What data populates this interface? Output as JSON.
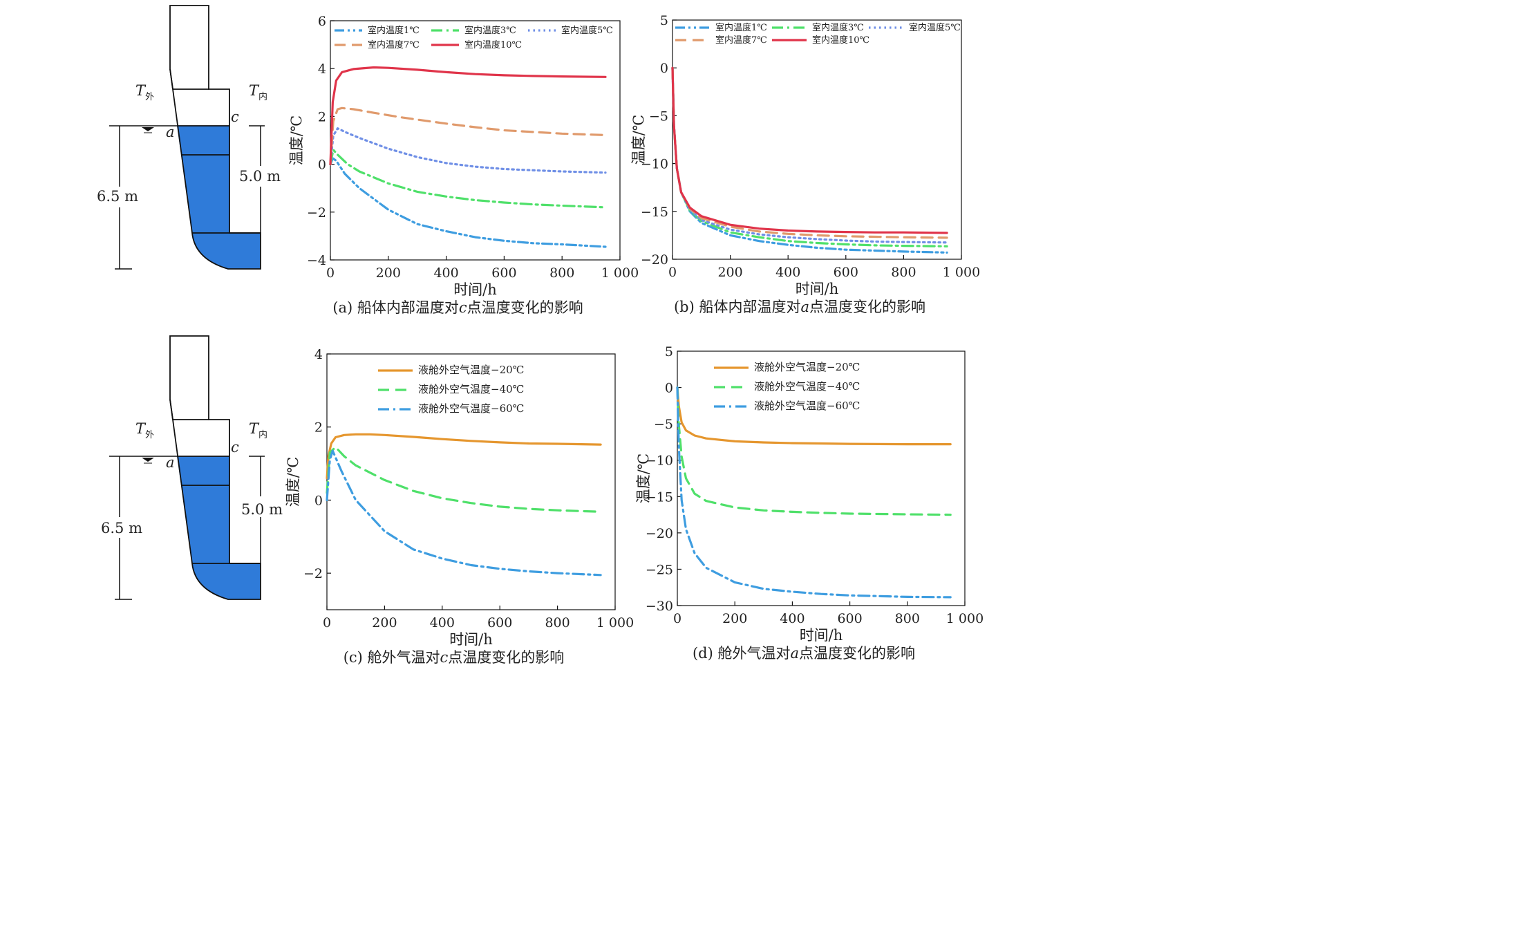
{
  "diagrams": [
    {
      "t_out": "T",
      "t_out_sub": "外",
      "t_in": "T",
      "t_in_sub": "内",
      "point_a": "a",
      "point_c": "c",
      "depth_total": "6.5 m",
      "depth_water": "5.0 m"
    },
    {
      "t_out": "T",
      "t_out_sub": "外",
      "t_in": "T",
      "t_in_sub": "内",
      "point_a": "a",
      "point_c": "c",
      "depth_total": "6.5 m",
      "depth_water": "5.0 m"
    }
  ],
  "colors": {
    "blue": "#3e9de0",
    "green": "#4fe06a",
    "dotted": "#6f8fe6",
    "orange_dash": "#e09a6c",
    "red": "#e0344a",
    "orange": "#e5962e",
    "tank_fill": "#2f7bd9"
  },
  "chart_data": [
    {
      "id": "a",
      "type": "line",
      "caption_prefix": "(a) 船体内部温度对",
      "caption_var": "c",
      "caption_suffix": "点温度变化的影响",
      "xlabel": "时间/h",
      "ylabel": "温度/℃",
      "xlim": [
        0,
        1000
      ],
      "ylim": [
        -4,
        6
      ],
      "xticks": [
        0,
        200,
        400,
        600,
        800,
        1000
      ],
      "xtick_labels": [
        "0",
        "200",
        "400",
        "600",
        "800",
        "1 000"
      ],
      "yticks": [
        -4,
        -2,
        0,
        2,
        4,
        6
      ],
      "ytick_labels": [
        "−4",
        "−2",
        "0",
        "2",
        "4",
        "6"
      ],
      "series": [
        {
          "name": "室内温度1℃",
          "style": "dashdotdot",
          "color": "#3e9de0",
          "x": [
            0,
            8,
            20,
            50,
            100,
            200,
            300,
            400,
            500,
            600,
            700,
            800,
            950
          ],
          "y": [
            0,
            0.25,
            0.15,
            -0.4,
            -1.0,
            -1.9,
            -2.5,
            -2.8,
            -3.05,
            -3.2,
            -3.3,
            -3.35,
            -3.45
          ]
        },
        {
          "name": "室内温度3℃",
          "style": "dashdot",
          "color": "#4fe06a",
          "x": [
            0,
            10,
            25,
            60,
            100,
            200,
            300,
            400,
            500,
            600,
            700,
            800,
            950
          ],
          "y": [
            0,
            0.6,
            0.4,
            0.0,
            -0.3,
            -0.8,
            -1.15,
            -1.35,
            -1.5,
            -1.6,
            -1.68,
            -1.73,
            -1.8
          ]
        },
        {
          "name": "室内温度5℃",
          "style": "dotted",
          "color": "#6f8fe6",
          "x": [
            0,
            10,
            25,
            60,
            100,
            200,
            300,
            400,
            500,
            600,
            700,
            800,
            950
          ],
          "y": [
            0,
            1.2,
            1.5,
            1.3,
            1.1,
            0.65,
            0.3,
            0.05,
            -0.1,
            -0.2,
            -0.25,
            -0.3,
            -0.35
          ]
        },
        {
          "name": "室内温度7℃",
          "style": "dashed",
          "color": "#e09a6c",
          "x": [
            0,
            10,
            25,
            40,
            80,
            150,
            250,
            400,
            500,
            600,
            700,
            800,
            950
          ],
          "y": [
            0,
            1.8,
            2.3,
            2.35,
            2.3,
            2.15,
            1.95,
            1.7,
            1.55,
            1.42,
            1.35,
            1.28,
            1.22
          ]
        },
        {
          "name": "室内温度10℃",
          "style": "solid",
          "color": "#e0344a",
          "x": [
            0,
            8,
            20,
            40,
            80,
            150,
            200,
            300,
            400,
            500,
            600,
            700,
            800,
            950
          ],
          "y": [
            0,
            2.6,
            3.5,
            3.85,
            3.98,
            4.05,
            4.03,
            3.95,
            3.85,
            3.77,
            3.72,
            3.69,
            3.67,
            3.65
          ]
        }
      ],
      "legend": {
        "location": "top",
        "columns": 3
      }
    },
    {
      "id": "b",
      "type": "line",
      "caption_prefix": "(b) 船体内部温度对",
      "caption_var": "a",
      "caption_suffix": "点温度变化的影响",
      "xlabel": "时间/h",
      "ylabel": "温度/℃",
      "xlim": [
        0,
        1000
      ],
      "ylim": [
        -20,
        5
      ],
      "xticks": [
        0,
        200,
        400,
        600,
        800,
        1000
      ],
      "xtick_labels": [
        "0",
        "200",
        "400",
        "600",
        "800",
        "1 000"
      ],
      "yticks": [
        -20,
        -15,
        -10,
        -5,
        0,
        5
      ],
      "ytick_labels": [
        "−20",
        "−15",
        "−10",
        "−5",
        "0",
        "5"
      ],
      "series": [
        {
          "name": "室内温度1℃",
          "style": "dashdotdot",
          "color": "#3e9de0",
          "x": [
            0,
            5,
            15,
            30,
            60,
            100,
            200,
            300,
            400,
            500,
            600,
            700,
            800,
            950
          ],
          "y": [
            0,
            -6,
            -10.5,
            -13,
            -15,
            -16.2,
            -17.5,
            -18.1,
            -18.5,
            -18.8,
            -19.0,
            -19.1,
            -19.2,
            -19.3
          ]
        },
        {
          "name": "室内温度3℃",
          "style": "dashdot",
          "color": "#4fe06a",
          "x": [
            0,
            5,
            15,
            30,
            60,
            100,
            200,
            300,
            400,
            500,
            600,
            700,
            800,
            950
          ],
          "y": [
            0,
            -6,
            -10.5,
            -13,
            -14.9,
            -16.0,
            -17.2,
            -17.7,
            -18.1,
            -18.3,
            -18.45,
            -18.55,
            -18.6,
            -18.65
          ]
        },
        {
          "name": "室内温度5℃",
          "style": "dotted",
          "color": "#6f8fe6",
          "x": [
            0,
            5,
            15,
            30,
            60,
            100,
            200,
            300,
            400,
            500,
            600,
            700,
            800,
            950
          ],
          "y": [
            0,
            -6,
            -10.5,
            -13,
            -14.8,
            -15.9,
            -16.9,
            -17.4,
            -17.7,
            -17.9,
            -18.05,
            -18.15,
            -18.2,
            -18.25
          ]
        },
        {
          "name": "室内温度7℃",
          "style": "dashed",
          "color": "#e09a6c",
          "x": [
            0,
            5,
            15,
            30,
            60,
            100,
            200,
            300,
            400,
            500,
            600,
            700,
            800,
            950
          ],
          "y": [
            0,
            -6,
            -10.5,
            -13,
            -14.7,
            -15.7,
            -16.6,
            -17.1,
            -17.35,
            -17.5,
            -17.6,
            -17.65,
            -17.7,
            -17.75
          ]
        },
        {
          "name": "室内温度10℃",
          "style": "solid",
          "color": "#e0344a",
          "x": [
            0,
            5,
            15,
            30,
            60,
            100,
            200,
            300,
            400,
            500,
            600,
            700,
            800,
            950
          ],
          "y": [
            0,
            -6,
            -10.5,
            -13,
            -14.6,
            -15.5,
            -16.4,
            -16.8,
            -17.0,
            -17.1,
            -17.15,
            -17.2,
            -17.2,
            -17.25
          ]
        }
      ],
      "legend": {
        "location": "top",
        "columns": 3
      }
    },
    {
      "id": "c",
      "type": "line",
      "caption_prefix": "(c) 舱外气温对",
      "caption_var": "c",
      "caption_suffix": "点温度变化的影响",
      "xlabel": "时间/h",
      "ylabel": "温度/℃",
      "xlim": [
        0,
        1000
      ],
      "ylim": [
        -3,
        4
      ],
      "xticks": [
        0,
        200,
        400,
        600,
        800,
        1000
      ],
      "xtick_labels": [
        "0",
        "200",
        "400",
        "600",
        "800",
        "1 000"
      ],
      "yticks": [
        -2,
        0,
        2,
        4
      ],
      "ytick_labels": [
        "−2",
        "0",
        "2",
        "4"
      ],
      "series": [
        {
          "name": "液舱外空气温度−20℃",
          "style": "solid",
          "color": "#e5962e",
          "x": [
            0,
            5,
            15,
            30,
            60,
            100,
            150,
            200,
            300,
            400,
            500,
            600,
            700,
            800,
            950
          ],
          "y": [
            0.6,
            1.2,
            1.55,
            1.72,
            1.78,
            1.8,
            1.8,
            1.78,
            1.73,
            1.67,
            1.62,
            1.58,
            1.55,
            1.54,
            1.52
          ]
        },
        {
          "name": "液舱外空气温度−40℃",
          "style": "dashed",
          "color": "#4fe06a",
          "x": [
            0,
            10,
            30,
            60,
            100,
            200,
            300,
            400,
            500,
            600,
            700,
            800,
            950
          ],
          "y": [
            0.2,
            1.3,
            1.45,
            1.2,
            0.95,
            0.55,
            0.25,
            0.05,
            -0.08,
            -0.18,
            -0.24,
            -0.28,
            -0.32
          ]
        },
        {
          "name": "液舱外空气温度−60℃",
          "style": "dashdot",
          "color": "#3e9de0",
          "x": [
            0,
            10,
            20,
            50,
            100,
            200,
            300,
            400,
            500,
            600,
            700,
            800,
            950
          ],
          "y": [
            0,
            1.1,
            1.35,
            0.8,
            0.0,
            -0.85,
            -1.35,
            -1.6,
            -1.78,
            -1.88,
            -1.95,
            -2.0,
            -2.05
          ]
        }
      ],
      "legend": {
        "location": "top-left",
        "columns": 1
      }
    },
    {
      "id": "d",
      "type": "line",
      "caption_prefix": "(d) 舱外气温对",
      "caption_var": "a",
      "caption_suffix": "点温度变化的影响",
      "xlabel": "时间/h",
      "ylabel": "温度/℃",
      "xlim": [
        0,
        1000
      ],
      "ylim": [
        -30,
        5
      ],
      "xticks": [
        0,
        200,
        400,
        600,
        800,
        1000
      ],
      "xtick_labels": [
        "0",
        "200",
        "400",
        "600",
        "800",
        "1 000"
      ],
      "yticks": [
        -30,
        -25,
        -20,
        -15,
        -10,
        -5,
        0,
        5
      ],
      "ytick_labels": [
        "−30",
        "−25",
        "−20",
        "−15",
        "−10",
        "−5",
        "0",
        "5"
      ],
      "series": [
        {
          "name": "液舱外空气温度−20℃",
          "style": "solid",
          "color": "#e5962e",
          "x": [
            0,
            5,
            15,
            30,
            60,
            100,
            200,
            300,
            400,
            500,
            600,
            700,
            800,
            950
          ],
          "y": [
            0,
            -2.5,
            -4.8,
            -5.9,
            -6.6,
            -7.0,
            -7.4,
            -7.55,
            -7.65,
            -7.7,
            -7.75,
            -7.78,
            -7.8,
            -7.8
          ]
        },
        {
          "name": "液舱外空气温度−40℃",
          "style": "dashed",
          "color": "#4fe06a",
          "x": [
            0,
            5,
            15,
            30,
            60,
            100,
            200,
            300,
            400,
            500,
            600,
            700,
            800,
            950
          ],
          "y": [
            0,
            -5,
            -9.5,
            -12.5,
            -14.6,
            -15.6,
            -16.5,
            -16.9,
            -17.1,
            -17.25,
            -17.35,
            -17.4,
            -17.45,
            -17.5
          ]
        },
        {
          "name": "液舱外空气温度−60℃",
          "style": "dashdot",
          "color": "#3e9de0",
          "x": [
            0,
            5,
            15,
            30,
            60,
            100,
            200,
            300,
            400,
            500,
            600,
            700,
            800,
            950
          ],
          "y": [
            0,
            -8,
            -15.5,
            -19.5,
            -22.8,
            -24.8,
            -26.8,
            -27.7,
            -28.1,
            -28.4,
            -28.6,
            -28.7,
            -28.8,
            -28.85
          ]
        }
      ],
      "legend": {
        "location": "top-left",
        "columns": 1
      }
    }
  ]
}
